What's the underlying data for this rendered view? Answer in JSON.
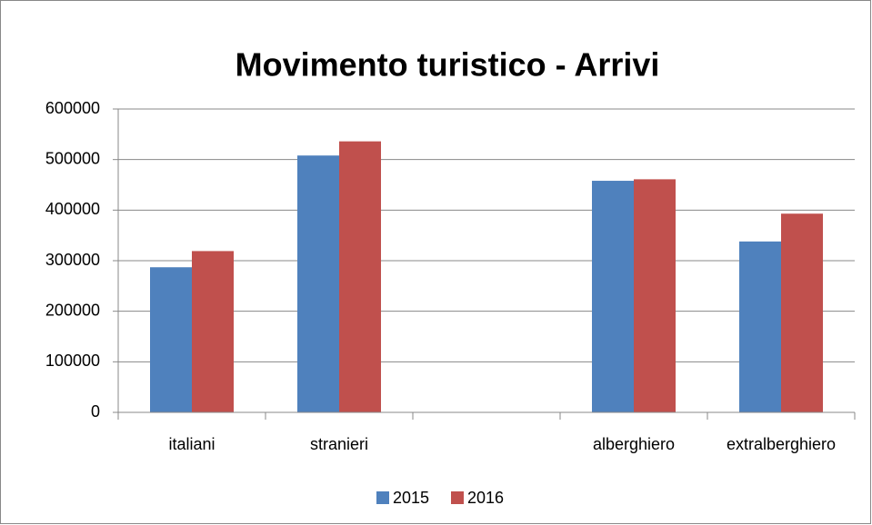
{
  "chart_data": {
    "type": "bar",
    "title": "Movimento turistico - Arrivi",
    "categories": [
      "italiani",
      "stranieri",
      null,
      "alberghiero",
      "extralberghiero"
    ],
    "series": [
      {
        "name": "2015",
        "color": "#4f81bd",
        "values": [
          287000,
          508000,
          null,
          458000,
          338000
        ]
      },
      {
        "name": "2016",
        "color": "#c0504d",
        "values": [
          319000,
          536000,
          null,
          461000,
          393000
        ]
      }
    ],
    "ylim": [
      0,
      600000
    ],
    "yticks": [
      0,
      100000,
      200000,
      300000,
      400000,
      500000,
      600000
    ],
    "grid": true,
    "legend": "bottom"
  }
}
